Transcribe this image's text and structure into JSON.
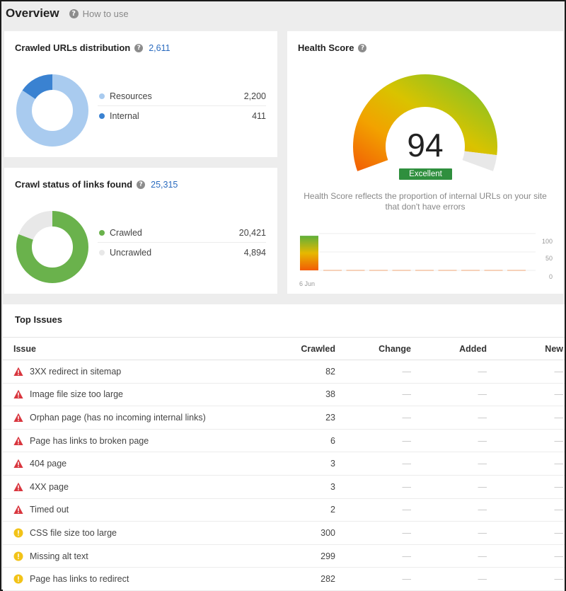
{
  "header": {
    "title": "Overview",
    "how_to_use": "How to use"
  },
  "crawled_urls": {
    "title": "Crawled URLs distribution",
    "count": "2,611",
    "items": [
      {
        "label": "Resources",
        "value": "2,200",
        "num": 2200,
        "color": "#a9cbef"
      },
      {
        "label": "Internal",
        "value": "411",
        "num": 411,
        "color": "#3a82d1"
      }
    ]
  },
  "crawl_status": {
    "title": "Crawl status of links found",
    "count": "25,315",
    "items": [
      {
        "label": "Crawled",
        "value": "20,421",
        "num": 20421,
        "color": "#6ab24c"
      },
      {
        "label": "Uncrawled",
        "value": "4,894",
        "num": 4894,
        "color": "#e8e8e8"
      }
    ]
  },
  "health": {
    "title": "Health Score",
    "score": "94",
    "score_value": 94,
    "badge": "Excellent",
    "description": "Health Score reflects the proportion of internal URLs on your site that don't have errors",
    "chart": {
      "ticks": [
        "100",
        "50",
        "0"
      ],
      "date": "6 Jun",
      "bars": [
        94
      ]
    }
  },
  "issues": {
    "title": "Top Issues",
    "columns": [
      "Issue",
      "Crawled",
      "Change",
      "Added",
      "New"
    ],
    "rows": [
      {
        "type": "error",
        "issue": "3XX redirect in sitemap",
        "crawled": "82",
        "change": "—",
        "added": "—",
        "new": "—"
      },
      {
        "type": "error",
        "issue": "Image file size too large",
        "crawled": "38",
        "change": "—",
        "added": "—",
        "new": "—"
      },
      {
        "type": "error",
        "issue": "Orphan page (has no incoming internal links)",
        "crawled": "23",
        "change": "—",
        "added": "—",
        "new": "—"
      },
      {
        "type": "error",
        "issue": "Page has links to broken page",
        "crawled": "6",
        "change": "—",
        "added": "—",
        "new": "—"
      },
      {
        "type": "error",
        "issue": "404 page",
        "crawled": "3",
        "change": "—",
        "added": "—",
        "new": "—"
      },
      {
        "type": "error",
        "issue": "4XX page",
        "crawled": "3",
        "change": "—",
        "added": "—",
        "new": "—"
      },
      {
        "type": "error",
        "issue": "Timed out",
        "crawled": "2",
        "change": "—",
        "added": "—",
        "new": "—"
      },
      {
        "type": "warning",
        "issue": "CSS file size too large",
        "crawled": "300",
        "change": "—",
        "added": "—",
        "new": "—"
      },
      {
        "type": "warning",
        "issue": "Missing alt text",
        "crawled": "299",
        "change": "—",
        "added": "—",
        "new": "—"
      },
      {
        "type": "warning",
        "issue": "Page has links to redirect",
        "crawled": "282",
        "change": "—",
        "added": "—",
        "new": "—"
      }
    ]
  },
  "colors": {
    "error": "#d9363e",
    "warning": "#f2c318",
    "link": "#2a6bbf",
    "badge": "#2f8f3e"
  }
}
